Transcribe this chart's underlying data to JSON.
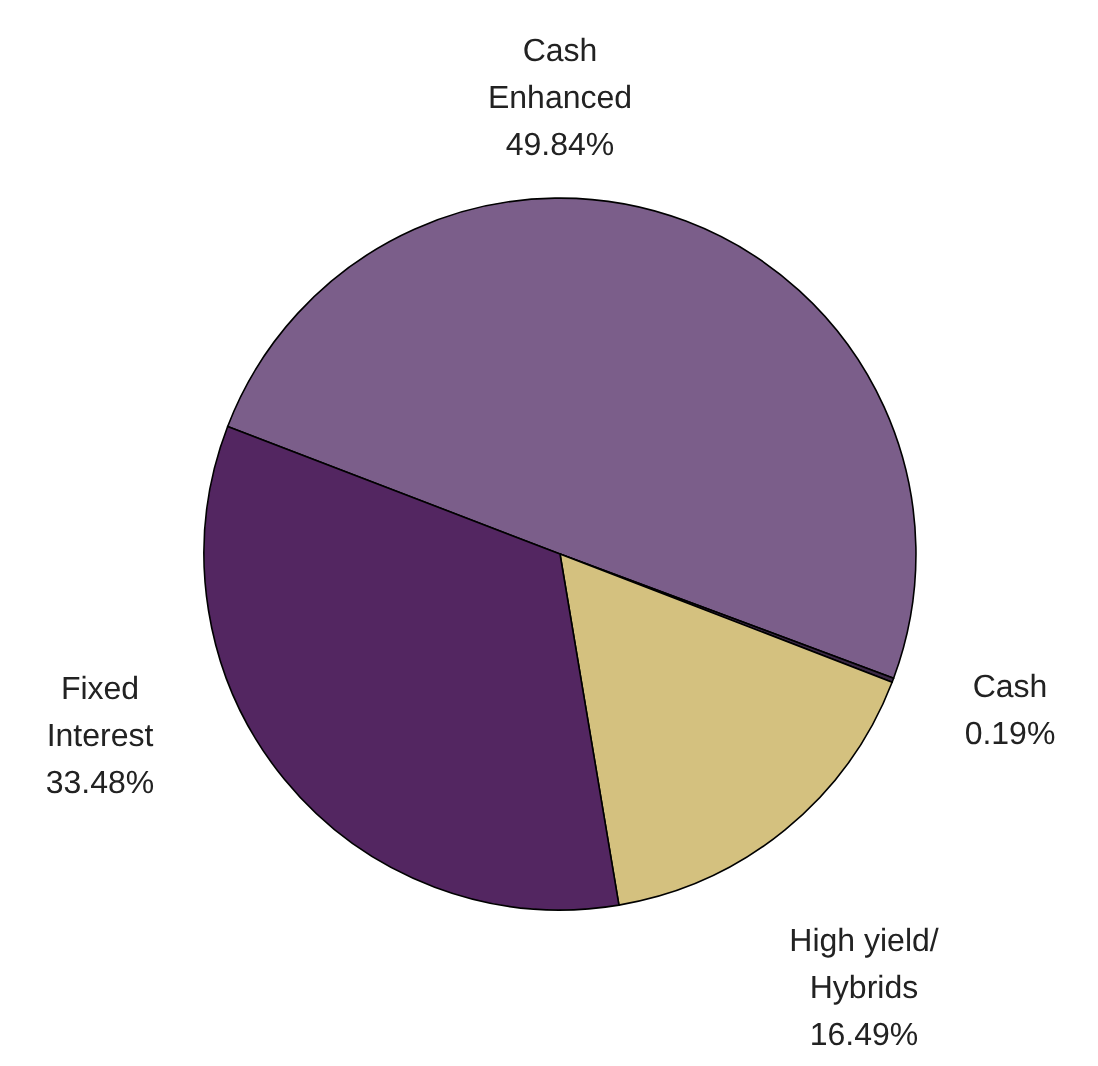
{
  "chart_data": {
    "type": "pie",
    "categories": [
      "Cash Enhanced",
      "Cash",
      "High yield/ Hybrids",
      "Fixed Interest"
    ],
    "values": [
      49.84,
      0.19,
      16.49,
      33.48
    ],
    "value_labels": [
      "49.84%",
      "0.19%",
      "16.49%",
      "33.48%"
    ],
    "colors": [
      "#7b5e8a",
      "#3b2845",
      "#d4c17f",
      "#532661"
    ]
  }
}
